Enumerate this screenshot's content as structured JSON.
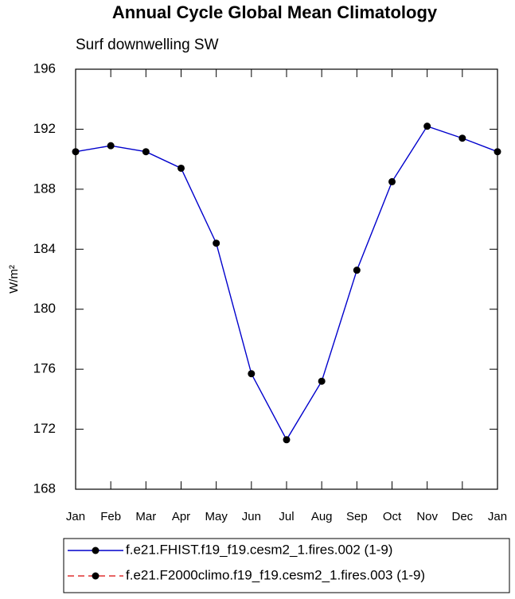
{
  "chart_data": {
    "type": "line",
    "title": "Annual Cycle Global Mean Climatology",
    "subtitle": "Surf downwelling SW",
    "y_label": "W/m²",
    "categories": [
      "Jan",
      "Feb",
      "Mar",
      "Apr",
      "May",
      "Jun",
      "Jul",
      "Aug",
      "Sep",
      "Oct",
      "Nov",
      "Dec",
      "Jan"
    ],
    "series": [
      {
        "name": "f.e21.FHIST.f19_f19.cesm2_1.fires.002 (1-9)",
        "color": "#0000cc",
        "dash": "solid",
        "values": [
          190.5,
          190.9,
          190.5,
          189.4,
          184.4,
          175.7,
          171.3,
          175.2,
          182.6,
          188.5,
          192.2,
          191.4,
          190.5
        ]
      },
      {
        "name": "f.e21.F2000climo.f19_f19.cesm2_1.fires.003 (1-9)",
        "color": "#e03030",
        "dash": "dashed",
        "values": [
          null,
          null,
          null,
          null,
          null,
          null,
          null,
          null,
          null,
          null,
          null,
          null,
          null
        ]
      }
    ],
    "ylim": [
      168,
      196
    ],
    "yticks": [
      168,
      172,
      176,
      180,
      184,
      188,
      192,
      196
    ],
    "legend_position": "bottom"
  }
}
